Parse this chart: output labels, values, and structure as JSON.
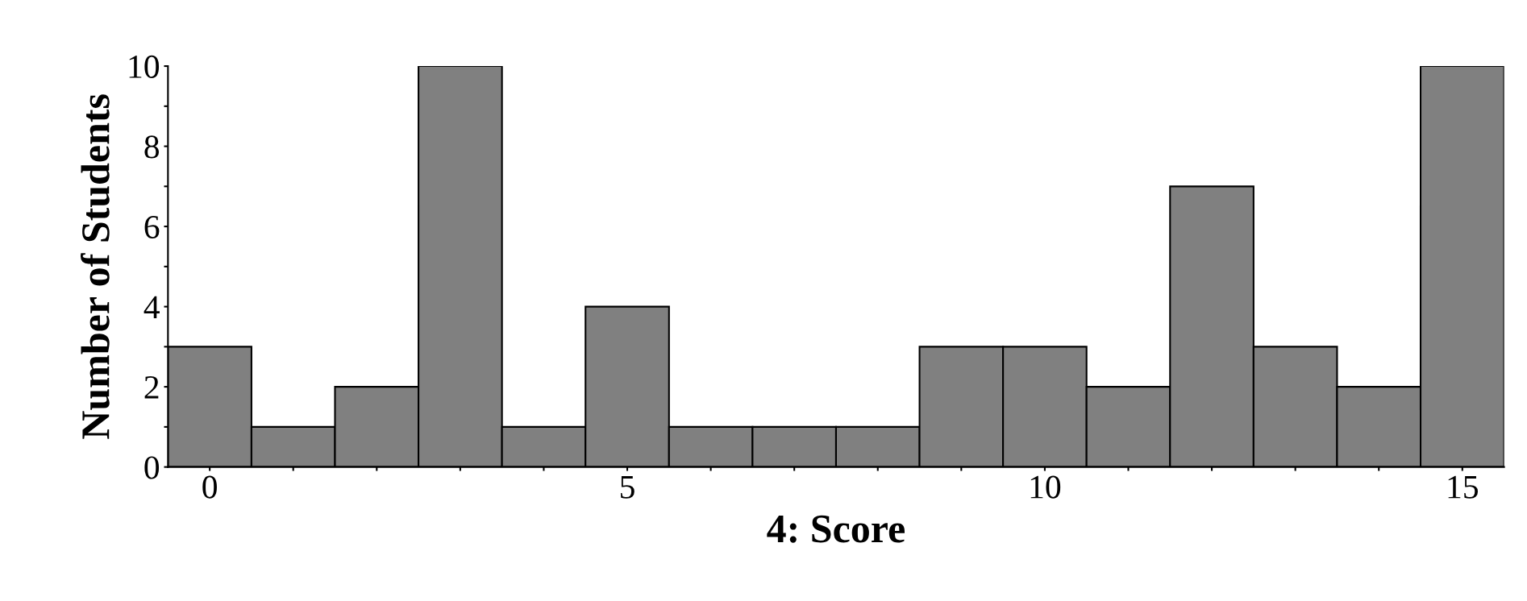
{
  "chart_data": {
    "type": "histogram",
    "xlabel": "4: Score",
    "ylabel": "Number of Students",
    "bins": [
      -0.5,
      0.5,
      1.5,
      2.5,
      3.5,
      4.5,
      5.5,
      6.5,
      7.5,
      8.5,
      9.5,
      10.5,
      11.5,
      12.5,
      13.5,
      14.5,
      15.5
    ],
    "values": [
      3,
      1,
      2,
      10,
      1,
      4,
      1,
      1,
      1,
      3,
      3,
      2,
      7,
      3,
      2,
      10
    ],
    "color": "#808080",
    "xlim": [
      -0.5,
      15.5
    ],
    "xticks": [
      0,
      {
        "value": 1,
        "label": null
      },
      {
        "value": 2,
        "label": null
      },
      {
        "value": 3,
        "label": null
      },
      {
        "value": 4,
        "label": null
      },
      5,
      {
        "value": 6,
        "label": null
      },
      {
        "value": 7,
        "label": null
      },
      {
        "value": 8,
        "label": null
      },
      {
        "value": 9,
        "label": null
      },
      10,
      {
        "value": 11,
        "label": null
      },
      {
        "value": 12,
        "label": null
      },
      {
        "value": 13,
        "label": null
      },
      {
        "value": 14,
        "label": null
      },
      15
    ],
    "ylim": [
      0,
      10
    ],
    "yticks": [
      0,
      {
        "value": 1,
        "label": null
      },
      2,
      {
        "value": 3,
        "label": null
      },
      4,
      {
        "value": 5,
        "label": null
      },
      6,
      {
        "value": 7,
        "label": null
      },
      8,
      {
        "value": 9,
        "label": null
      },
      10
    ],
    "grid": false
  }
}
